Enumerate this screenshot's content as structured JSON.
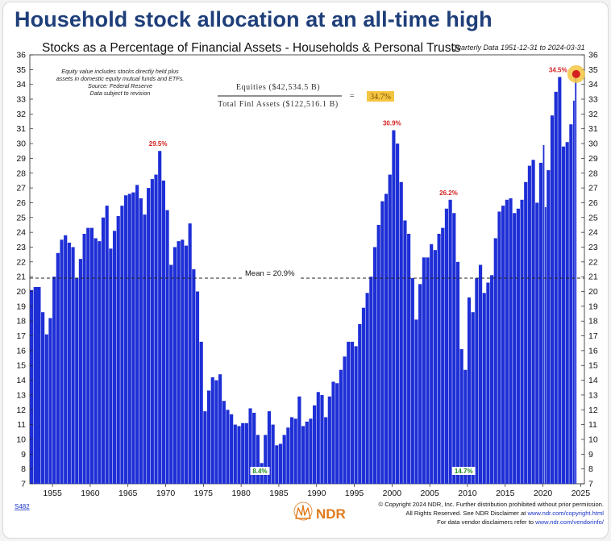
{
  "headline": "Household stock allocation at an all-time high",
  "chart_data": {
    "type": "bar",
    "title": "Stocks as a Percentage of Financial Assets - Households & Personal Trusts",
    "subtitle": "Quarterly Data 1951-12-31 to 2024-03-31",
    "xlabel": "",
    "ylabel": "",
    "ylim": [
      7,
      36
    ],
    "y_ticks": [
      7,
      8,
      9,
      10,
      11,
      12,
      13,
      14,
      15,
      16,
      17,
      18,
      19,
      20,
      21,
      22,
      23,
      24,
      25,
      26,
      27,
      28,
      29,
      30,
      31,
      32,
      33,
      34,
      35,
      36
    ],
    "x_ticks": [
      "1955",
      "1960",
      "1965",
      "1970",
      "1975",
      "1980",
      "1985",
      "1990",
      "1995",
      "2000",
      "2005",
      "2010",
      "2015",
      "2020",
      "2025"
    ],
    "x_range": [
      "1951-12-31",
      "2025-06-30"
    ],
    "series": [
      {
        "color": "#1e2fd6",
        "points": [
          [
            "1951-12-31",
            20.1
          ],
          [
            "1952-06-30",
            20.3
          ],
          [
            "1953-06-30",
            18.6
          ],
          [
            "1953-12-31",
            17.1
          ],
          [
            "1954-06-30",
            18.2
          ],
          [
            "1954-12-31",
            21.0
          ],
          [
            "1955-06-30",
            22.6
          ],
          [
            "1955-12-31",
            23.5
          ],
          [
            "1956-06-30",
            23.8
          ],
          [
            "1956-12-31",
            23.3
          ],
          [
            "1957-06-30",
            23.0
          ],
          [
            "1957-12-31",
            20.9
          ],
          [
            "1958-06-30",
            22.2
          ],
          [
            "1958-12-31",
            23.9
          ],
          [
            "1959-06-30",
            24.3
          ],
          [
            "1959-12-31",
            24.3
          ],
          [
            "1960-06-30",
            23.6
          ],
          [
            "1960-12-31",
            23.4
          ],
          [
            "1961-06-30",
            25.0
          ],
          [
            "1961-12-31",
            25.8
          ],
          [
            "1962-06-30",
            22.9
          ],
          [
            "1962-12-31",
            24.1
          ],
          [
            "1963-06-30",
            25.1
          ],
          [
            "1963-12-31",
            25.8
          ],
          [
            "1964-06-30",
            26.5
          ],
          [
            "1964-12-31",
            26.6
          ],
          [
            "1965-06-30",
            26.7
          ],
          [
            "1965-12-31",
            27.2
          ],
          [
            "1966-06-30",
            26.3
          ],
          [
            "1966-12-31",
            25.2
          ],
          [
            "1967-06-30",
            27.0
          ],
          [
            "1967-12-31",
            27.6
          ],
          [
            "1968-06-30",
            27.9
          ],
          [
            "1968-12-31",
            29.5
          ],
          [
            "1969-06-30",
            27.5
          ],
          [
            "1969-12-31",
            25.5
          ],
          [
            "1970-06-30",
            21.8
          ],
          [
            "1970-12-31",
            23.0
          ],
          [
            "1971-06-30",
            23.4
          ],
          [
            "1971-12-31",
            23.5
          ],
          [
            "1972-06-30",
            23.1
          ],
          [
            "1972-12-31",
            24.6
          ],
          [
            "1973-06-30",
            21.5
          ],
          [
            "1973-12-31",
            20.0
          ],
          [
            "1974-06-30",
            16.6
          ],
          [
            "1974-12-31",
            11.9
          ],
          [
            "1975-06-30",
            13.3
          ],
          [
            "1975-12-31",
            14.2
          ],
          [
            "1976-06-30",
            14.0
          ],
          [
            "1976-12-31",
            14.4
          ],
          [
            "1977-06-30",
            12.6
          ],
          [
            "1977-12-31",
            12.0
          ],
          [
            "1978-06-30",
            11.7
          ],
          [
            "1978-12-31",
            11.0
          ],
          [
            "1979-06-30",
            10.9
          ],
          [
            "1979-12-31",
            11.1
          ],
          [
            "1980-06-30",
            11.1
          ],
          [
            "1980-12-31",
            12.1
          ],
          [
            "1981-06-30",
            11.8
          ],
          [
            "1981-12-31",
            10.3
          ],
          [
            "1982-06-30",
            8.4
          ],
          [
            "1982-12-31",
            10.3
          ],
          [
            "1983-06-30",
            11.9
          ],
          [
            "1983-12-31",
            11.0
          ],
          [
            "1984-06-30",
            9.6
          ],
          [
            "1984-12-31",
            9.7
          ],
          [
            "1985-06-30",
            10.3
          ],
          [
            "1985-12-31",
            10.8
          ],
          [
            "1986-06-30",
            11.5
          ],
          [
            "1986-12-31",
            11.4
          ],
          [
            "1987-06-30",
            12.9
          ],
          [
            "1987-12-31",
            10.9
          ],
          [
            "1988-06-30",
            11.2
          ],
          [
            "1988-12-31",
            11.4
          ],
          [
            "1989-06-30",
            12.3
          ],
          [
            "1989-12-31",
            13.2
          ],
          [
            "1990-06-30",
            13.0
          ],
          [
            "1990-12-31",
            11.5
          ],
          [
            "1991-06-30",
            12.9
          ],
          [
            "1991-12-31",
            13.9
          ],
          [
            "1992-06-30",
            13.8
          ],
          [
            "1992-12-31",
            14.7
          ],
          [
            "1993-06-30",
            15.6
          ],
          [
            "1993-12-31",
            16.6
          ],
          [
            "1994-06-30",
            16.6
          ],
          [
            "1994-12-31",
            16.3
          ],
          [
            "1995-06-30",
            17.8
          ],
          [
            "1995-12-31",
            18.9
          ],
          [
            "1996-06-30",
            19.9
          ],
          [
            "1996-12-31",
            21.0
          ],
          [
            "1997-06-30",
            23.0
          ],
          [
            "1997-12-31",
            24.5
          ],
          [
            "1998-06-30",
            26.1
          ],
          [
            "1998-12-31",
            26.6
          ],
          [
            "1999-06-30",
            27.9
          ],
          [
            "1999-12-31",
            30.9
          ],
          [
            "2000-06-30",
            30.0
          ],
          [
            "2000-12-31",
            27.4
          ],
          [
            "2001-06-30",
            24.8
          ],
          [
            "2001-12-31",
            23.9
          ],
          [
            "2002-06-30",
            20.9
          ],
          [
            "2002-12-31",
            18.1
          ],
          [
            "2003-06-30",
            20.5
          ],
          [
            "2003-12-31",
            22.3
          ],
          [
            "2004-06-30",
            22.3
          ],
          [
            "2004-12-31",
            23.2
          ],
          [
            "2005-06-30",
            22.8
          ],
          [
            "2005-12-31",
            23.9
          ],
          [
            "2006-06-30",
            24.3
          ],
          [
            "2006-12-31",
            25.6
          ],
          [
            "2007-06-30",
            26.2
          ],
          [
            "2007-12-31",
            25.3
          ],
          [
            "2008-06-30",
            22.0
          ],
          [
            "2008-12-31",
            16.1
          ],
          [
            "2009-06-30",
            14.7
          ],
          [
            "2009-12-31",
            19.6
          ],
          [
            "2010-06-30",
            18.6
          ],
          [
            "2010-12-31",
            20.9
          ],
          [
            "2011-06-30",
            21.8
          ],
          [
            "2011-12-31",
            19.9
          ],
          [
            "2012-06-30",
            20.6
          ],
          [
            "2012-12-31",
            21.1
          ],
          [
            "2013-06-30",
            23.6
          ],
          [
            "2013-12-31",
            25.4
          ],
          [
            "2014-06-30",
            25.8
          ],
          [
            "2014-12-31",
            26.2
          ],
          [
            "2015-06-30",
            26.3
          ],
          [
            "2015-12-31",
            25.3
          ],
          [
            "2016-06-30",
            25.6
          ],
          [
            "2016-12-31",
            26.2
          ],
          [
            "2017-06-30",
            27.4
          ],
          [
            "2017-12-31",
            28.5
          ],
          [
            "2018-06-30",
            28.9
          ],
          [
            "2018-12-31",
            26.0
          ],
          [
            "2019-06-30",
            28.7
          ],
          [
            "2019-12-31",
            29.9
          ],
          [
            "2020-03-31",
            25.7
          ],
          [
            "2020-06-30",
            28.2
          ],
          [
            "2020-12-31",
            31.9
          ],
          [
            "2021-06-30",
            33.5
          ],
          [
            "2021-12-31",
            34.5
          ],
          [
            "2022-06-30",
            29.8
          ],
          [
            "2022-12-31",
            30.1
          ],
          [
            "2023-06-30",
            31.3
          ],
          [
            "2023-12-31",
            32.9
          ],
          [
            "2024-03-31",
            34.7
          ]
        ]
      }
    ],
    "mean": {
      "value": 20.9,
      "label": "Mean = 20.9%"
    },
    "annotations": [
      {
        "text": "29.5%",
        "x": "1968-12-31",
        "y": 29.5,
        "color": "#d42020"
      },
      {
        "text": "30.9%",
        "x": "1999-12-31",
        "y": 30.9,
        "color": "#d42020"
      },
      {
        "text": "26.2%",
        "x": "2007-06-30",
        "y": 26.2,
        "color": "#d42020"
      },
      {
        "text": "34.5%",
        "x": "2021-12-31",
        "y": 34.5,
        "color": "#d42020"
      },
      {
        "text": "8.4%",
        "x": "1982-06-30",
        "y": 8.4,
        "color": "#1d8a1d"
      },
      {
        "text": "14.7%",
        "x": "2009-06-30",
        "y": 14.7,
        "color": "#1d8a1d"
      }
    ],
    "note_lines": [
      "Equity value includes stocks directly held plus",
      "assets in domestic equity mutual funds and ETFs.",
      "Source: Federal Reserve",
      "Data subject to revision"
    ],
    "formula": {
      "numerator": "Equities ($42,534.5 B)",
      "denominator": "Total Finl Assets ($122,516.1 B)",
      "equals": "=",
      "result": "34.7%"
    },
    "grid": false,
    "legend": "none"
  },
  "footer": {
    "code": "S482",
    "brand": "NDR",
    "copyright": "© Copyright 2024 NDR, Inc. Further distribution prohibited without prior permission.",
    "rights_prefix": "All Rights Reserved. See NDR Disclaimer at ",
    "rights_link": "www.ndr.com/copyright.html",
    "vendor_prefix": "For data vendor disclaimers refer to ",
    "vendor_link": "www.ndr.com/vendorinfo/"
  }
}
